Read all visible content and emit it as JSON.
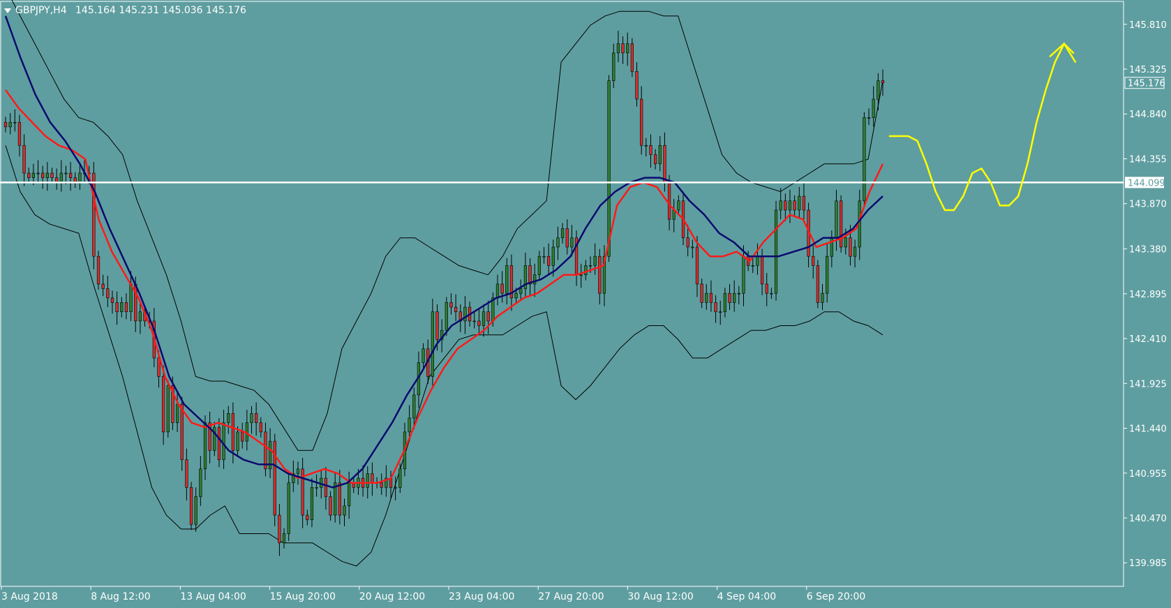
{
  "header": {
    "symbol": "GBPJPY,H4",
    "ohlc": "145.164 145.231 145.036 145.176"
  },
  "colors": {
    "background": "#5f9ea0",
    "axis_text": "#ffffff",
    "bull_candle": "#2e7d32",
    "bear_candle": "#d32f2f",
    "wick": "#000000",
    "ma_fast": "#ff1a1a",
    "ma_slow": "#0a0a6e",
    "bollinger": "#000000",
    "horizontal_line": "#ffffff",
    "projection": "#ffff00"
  },
  "chart_data": {
    "type": "candlestick",
    "instrument": "GBPJPY",
    "timeframe": "H4",
    "last_price": "145.176",
    "horizontal_line": {
      "price": "144.099"
    },
    "ylim": [
      139.73,
      146.05
    ],
    "y_ticks": [
      "145.810",
      "145.325",
      "144.840",
      "144.355",
      "143.870",
      "143.380",
      "142.895",
      "142.410",
      "141.925",
      "141.440",
      "140.955",
      "140.470",
      "139.985"
    ],
    "x_ticks": [
      "3 Aug 2018",
      "8 Aug 12:00",
      "13 Aug 04:00",
      "15 Aug 20:00",
      "20 Aug 12:00",
      "23 Aug 04:00",
      "27 Aug 20:00",
      "30 Aug 12:00",
      "4 Sep 04:00",
      "6 Sep 20:00"
    ],
    "candles_close": [
      144.7,
      144.75,
      144.75,
      144.5,
      144.2,
      144.15,
      144.2,
      144.2,
      144.15,
      144.2,
      144.15,
      144.1,
      144.2,
      144.2,
      144.15,
      144.1,
      144.2,
      144.2,
      144.2,
      143.3,
      143.0,
      142.95,
      142.85,
      142.8,
      142.7,
      142.8,
      142.7,
      143.0,
      142.6,
      142.7,
      142.6,
      142.6,
      142.2,
      142.0,
      141.4,
      141.9,
      141.5,
      141.7,
      141.1,
      140.8,
      140.4,
      140.7,
      141.0,
      141.5,
      141.2,
      141.45,
      141.1,
      141.5,
      141.6,
      141.2,
      141.4,
      141.3,
      141.5,
      141.6,
      141.5,
      141.4,
      141.0,
      141.3,
      140.5,
      140.2,
      140.3,
      140.85,
      140.95,
      141.0,
      140.5,
      140.45,
      140.8,
      140.8,
      140.9,
      140.7,
      140.5,
      140.85,
      140.5,
      140.6,
      140.85,
      140.8,
      140.9,
      140.8,
      140.95,
      140.85,
      140.85,
      140.8,
      140.9,
      140.8,
      140.8,
      141.0,
      141.4,
      141.55,
      141.8,
      142.15,
      142.3,
      142.0,
      142.7,
      142.4,
      142.5,
      142.8,
      142.75,
      142.7,
      142.6,
      142.75,
      142.6,
      142.6,
      142.55,
      142.7,
      142.6,
      142.85,
      143.0,
      142.9,
      143.2,
      142.85,
      142.9,
      142.95,
      143.2,
      143.0,
      143.1,
      143.3,
      143.3,
      143.2,
      143.4,
      143.5,
      143.6,
      143.4,
      143.5,
      143.1,
      143.1,
      143.2,
      143.2,
      143.3,
      142.9,
      143.3,
      145.2,
      145.5,
      145.6,
      145.5,
      145.6,
      145.3,
      145.0,
      144.5,
      144.5,
      144.4,
      144.3,
      144.5,
      144.1,
      143.7,
      143.8,
      143.9,
      143.5,
      143.4,
      143.4,
      143.0,
      142.8,
      142.9,
      142.8,
      142.7,
      142.7,
      142.9,
      142.8,
      142.9,
      142.9,
      143.3,
      143.2,
      143.2,
      143.3,
      143.0,
      142.9,
      142.9,
      143.8,
      143.9,
      143.8,
      143.9,
      143.8,
      143.95,
      143.8,
      143.3,
      143.2,
      142.8,
      142.9,
      143.3,
      143.5,
      143.9,
      143.4,
      143.5,
      143.3,
      143.4,
      143.9,
      144.8,
      144.8,
      145.0,
      145.2,
      145.176
    ],
    "series": [
      {
        "label": "fast moving average (red)",
        "values": [
          145.1,
          144.9,
          144.75,
          144.6,
          144.5,
          144.45,
          144.35,
          143.7,
          143.35,
          143.1,
          142.85,
          142.5,
          142.0,
          141.7,
          141.5,
          141.45,
          141.5,
          141.45,
          141.4,
          141.3,
          141.2,
          141.0,
          140.9,
          140.95,
          141.0,
          140.95,
          140.85,
          140.85,
          140.85,
          140.9,
          141.2,
          141.55,
          141.85,
          142.1,
          142.3,
          142.4,
          142.5,
          142.65,
          142.75,
          142.85,
          142.9,
          143.0,
          143.1,
          143.1,
          143.15,
          143.2,
          143.85,
          144.05,
          144.1,
          144.05,
          143.85,
          143.7,
          143.45,
          143.3,
          143.3,
          143.35,
          143.25,
          143.45,
          143.6,
          143.75,
          143.7,
          143.4,
          143.45,
          143.5,
          143.6,
          144.0,
          144.3
        ]
      },
      {
        "label": "slow moving average (navy)",
        "values": [
          145.9,
          145.45,
          145.05,
          144.75,
          144.55,
          144.3,
          144.0,
          143.6,
          143.25,
          142.9,
          142.5,
          142.0,
          141.7,
          141.55,
          141.4,
          141.2,
          141.1,
          141.05,
          141.05,
          140.95,
          140.9,
          140.85,
          140.8,
          140.85,
          141.0,
          141.25,
          141.5,
          141.8,
          142.05,
          142.35,
          142.55,
          142.65,
          142.75,
          142.85,
          142.9,
          143.0,
          143.05,
          143.15,
          143.3,
          143.6,
          143.85,
          144.0,
          144.1,
          144.15,
          144.15,
          144.1,
          143.9,
          143.75,
          143.55,
          143.45,
          143.3,
          143.3,
          143.3,
          143.35,
          143.4,
          143.5,
          143.5,
          143.6,
          143.8,
          143.95
        ]
      },
      {
        "label": "Bollinger upper band",
        "values": [
          146.2,
          145.9,
          145.6,
          145.3,
          145.0,
          144.8,
          144.75,
          144.6,
          144.4,
          143.9,
          143.5,
          143.1,
          142.6,
          142.0,
          141.95,
          141.95,
          141.9,
          141.85,
          141.7,
          141.45,
          141.2,
          141.2,
          141.6,
          142.3,
          142.6,
          142.9,
          143.3,
          143.5,
          143.5,
          143.4,
          143.3,
          143.2,
          143.15,
          143.1,
          143.3,
          143.6,
          143.75,
          143.9,
          145.4,
          145.6,
          145.8,
          145.9,
          145.95,
          145.95,
          145.95,
          145.9,
          145.9,
          145.4,
          144.9,
          144.4,
          144.2,
          144.1,
          144.05,
          144.0,
          144.1,
          144.2,
          144.3,
          144.3,
          144.3,
          144.35,
          145.2
        ]
      },
      {
        "label": "Bollinger lower band",
        "values": [
          144.5,
          144.0,
          143.75,
          143.65,
          143.6,
          143.55,
          143.0,
          142.5,
          142.0,
          141.4,
          140.8,
          140.5,
          140.35,
          140.35,
          140.5,
          140.6,
          140.3,
          140.3,
          140.3,
          140.2,
          140.2,
          140.2,
          140.1,
          140.0,
          139.95,
          140.1,
          140.5,
          141.0,
          141.5,
          142.0,
          142.2,
          142.4,
          142.45,
          142.45,
          142.45,
          142.55,
          142.65,
          142.7,
          141.9,
          141.75,
          141.9,
          142.1,
          142.3,
          142.45,
          142.55,
          142.55,
          142.4,
          142.2,
          142.2,
          142.3,
          142.4,
          142.5,
          142.5,
          142.55,
          142.55,
          142.6,
          142.7,
          142.7,
          142.6,
          142.55,
          142.45
        ]
      },
      {
        "label": "hand-drawn projection path",
        "values": [
          144.6,
          144.6,
          144.6,
          144.55,
          144.3,
          144.0,
          143.8,
          143.8,
          143.95,
          144.2,
          144.25,
          144.1,
          143.85,
          143.85,
          143.95,
          144.3,
          144.75,
          145.1,
          145.4,
          145.6,
          145.5
        ]
      }
    ]
  }
}
